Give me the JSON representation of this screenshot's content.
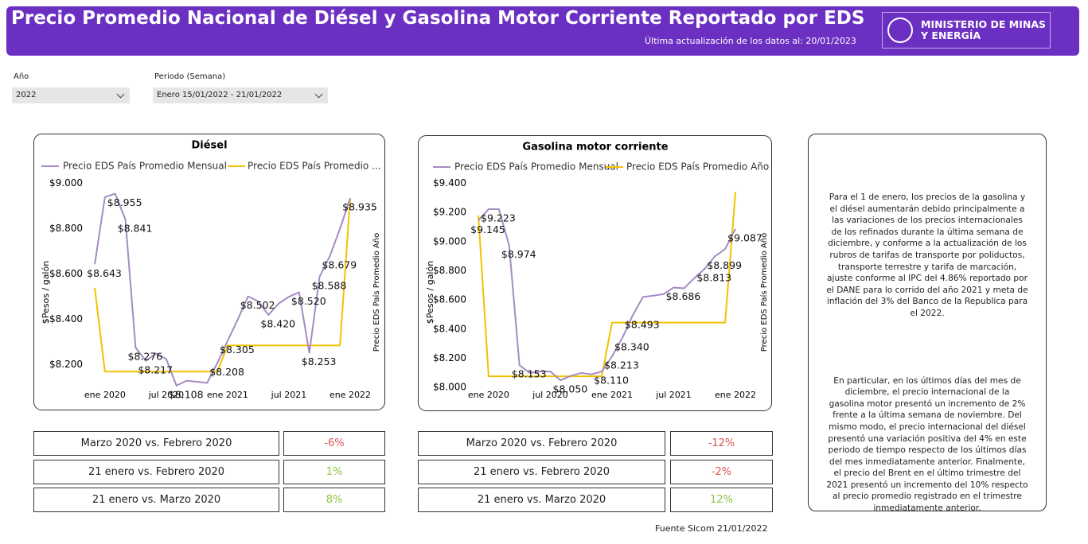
{
  "header": {
    "title": "Precio Promedio Nacional de Diésel y Gasolina Motor Corriente Reportado por EDS",
    "updated": "Última actualización de los datos al: 20/01/2023",
    "logo": [
      "MINISTERIO DE MINAS",
      "Y ENERGÍA"
    ]
  },
  "filters": [
    {
      "label": "Año",
      "value": "2022"
    },
    {
      "label": "Periodo (Semana)",
      "value": "Enero 15/01/2022 - 21/01/2022"
    }
  ],
  "chart_data": [
    {
      "type": "line",
      "title": "Diésel",
      "ylabel": "$Pesos / galón",
      "y2label": "Precio EDS País Promedio Año",
      "x": [
        "2019-12",
        "2020-01",
        "2020-02",
        "2020-03",
        "2020-04",
        "2020-05",
        "2020-06",
        "2020-07",
        "2020-08",
        "2020-09",
        "2020-10",
        "2020-11",
        "2020-12",
        "2021-01",
        "2021-02",
        "2021-03",
        "2021-04",
        "2021-05",
        "2021-06",
        "2021-07",
        "2021-08",
        "2021-09",
        "2021-10",
        "2021-11",
        "2021-12",
        "2022-01"
      ],
      "xticks": [
        {
          "value": "2020-01",
          "label": "ene 2020"
        },
        {
          "value": "2020-07",
          "label": "jul 2020"
        },
        {
          "value": "2021-01",
          "label": "ene 2021"
        },
        {
          "value": "2021-07",
          "label": "jul 2021"
        },
        {
          "value": "2022-01",
          "label": "ene 2022"
        }
      ],
      "ylim": [
        8090,
        9020
      ],
      "yticks": [
        {
          "value": 8200,
          "label": "$8.200"
        },
        {
          "value": 8400,
          "label": "$8.400"
        },
        {
          "value": 8600,
          "label": "$8.600"
        },
        {
          "value": 8800,
          "label": "$8.800"
        },
        {
          "value": 9000,
          "label": "$9.000"
        }
      ],
      "grid": false,
      "series": [
        {
          "name": "Precio EDS País Promedio Mensual",
          "color": "#a58bc4",
          "values": [
            8643,
            8940,
            8955,
            8841,
            8276,
            8217,
            8250,
            8225,
            8108,
            8130,
            8125,
            8120,
            8208,
            8305,
            8400,
            8502,
            8480,
            8420,
            8470,
            8500,
            8520,
            8253,
            8588,
            8679,
            8800,
            8935
          ],
          "value_labels": [
            "$8.643",
            null,
            "$8.955",
            "$8.841",
            "$8.276",
            "$8.217",
            null,
            null,
            "$8.108",
            null,
            null,
            null,
            "$8.208",
            "$8.305",
            null,
            "$8.502",
            null,
            "$8.420",
            null,
            null,
            "$8.520",
            "$8.253",
            "$8.588",
            "$8.679",
            null,
            "$8.935"
          ]
        },
        {
          "name": "Precio EDS País Promedio ...",
          "color": "#f2c200",
          "values": [
            8540,
            8170,
            8170,
            8170,
            8170,
            8170,
            8170,
            8170,
            8170,
            8170,
            8170,
            8170,
            8170,
            8285,
            8285,
            8285,
            8285,
            8285,
            8285,
            8285,
            8285,
            8285,
            8285,
            8285,
            8285,
            8935
          ]
        }
      ]
    },
    {
      "type": "line",
      "title": "Gasolina motor corriente",
      "ylabel": "$Pesos / galón",
      "y2label": "Precio EDS País Promedio Año",
      "x": [
        "2019-12",
        "2020-01",
        "2020-02",
        "2020-03",
        "2020-04",
        "2020-05",
        "2020-06",
        "2020-07",
        "2020-08",
        "2020-09",
        "2020-10",
        "2020-11",
        "2020-12",
        "2021-01",
        "2021-02",
        "2021-03",
        "2021-04",
        "2021-05",
        "2021-06",
        "2021-07",
        "2021-08",
        "2021-09",
        "2021-10",
        "2021-11",
        "2021-12",
        "2022-01"
      ],
      "xticks": [
        {
          "value": "2020-01",
          "label": "ene 2020"
        },
        {
          "value": "2020-07",
          "label": "jul 2020"
        },
        {
          "value": "2021-01",
          "label": "ene 2021"
        },
        {
          "value": "2021-07",
          "label": "jul 2021"
        },
        {
          "value": "2022-01",
          "label": "ene 2022"
        }
      ],
      "ylim": [
        7985,
        9430
      ],
      "yticks": [
        {
          "value": 8000,
          "label": "$8.000"
        },
        {
          "value": 8200,
          "label": "$8.200"
        },
        {
          "value": 8400,
          "label": "$8.400"
        },
        {
          "value": 8600,
          "label": "$8.600"
        },
        {
          "value": 8800,
          "label": "$8.800"
        },
        {
          "value": 9000,
          "label": "$9.000"
        },
        {
          "value": 9200,
          "label": "$9.200"
        },
        {
          "value": 9400,
          "label": "$9.400"
        }
      ],
      "grid": false,
      "series": [
        {
          "name": "Precio EDS País Promedio Mensual",
          "color": "#a58bc4",
          "values": [
            9145,
            9223,
            9223,
            8974,
            8153,
            8100,
            8110,
            8110,
            8050,
            8080,
            8100,
            8090,
            8110,
            8213,
            8340,
            8493,
            8620,
            8630,
            8640,
            8686,
            8680,
            8750,
            8813,
            8899,
            8950,
            9087
          ],
          "value_labels": [
            "$9.145",
            "$9.223",
            null,
            "$8.974",
            "$8.153",
            null,
            null,
            null,
            "$8.050",
            null,
            null,
            null,
            "$8.110",
            "$8.213",
            "$8.340",
            "$8.493",
            null,
            null,
            null,
            "$8.686",
            null,
            null,
            "$8.813",
            "$8.899",
            null,
            "$9.087"
          ]
        },
        {
          "name": "Precio EDS País Promedio Año",
          "color": "#f2c200",
          "values": [
            9180,
            8077,
            8077,
            8077,
            8077,
            8077,
            8077,
            8077,
            8077,
            8077,
            8077,
            8077,
            8077,
            8445,
            8445,
            8445,
            8445,
            8445,
            8445,
            8445,
            8445,
            8445,
            8445,
            8445,
            8445,
            9340
          ]
        }
      ]
    }
  ],
  "tables": [
    [
      {
        "label": "Marzo 2020 vs. Febrero 2020",
        "value": "-6%",
        "color": "#d9534f"
      },
      {
        "label": "21 enero vs. Febrero 2020",
        "value": "1%",
        "color": "#8dc63f"
      },
      {
        "label": "21 enero vs. Marzo 2020",
        "value": "8%",
        "color": "#8dc63f"
      }
    ],
    [
      {
        "label": "Marzo 2020 vs. Febrero 2020",
        "value": "-12%",
        "color": "#d9534f"
      },
      {
        "label": "21 enero vs. Febrero 2020",
        "value": "-2%",
        "color": "#d9534f"
      },
      {
        "label": "21 enero vs. Marzo 2020",
        "value": "12%",
        "color": "#8dc63f"
      }
    ]
  ],
  "notes": [
    "Para el 1 de enero, los precios de la gasolina y el diésel aumentarán debido principalmente a las variaciones de los precios internacionales de los refinados durante la última semana de diciembre, y conforme a la actualización de los rubros de tarifas de transporte por poliductos, transporte terrestre y tarifa de marcación, ajuste conforme al IPC del 4.86% reportado por el DANE para lo corrido del año 2021 y meta de inflación del 3% del Banco de la Republica para el 2022.",
    "En particular, en los últimos días del mes de diciembre, el precio internacional de la gasolina motor presentó un incremento de 2% frente a la última semana de noviembre. Del mismo modo, el precio internacional del diésel presentó una variación positiva del 4% en este periodo de tiempo respecto de los últimos días del mes inmediatamente anterior. Finalmente, el precio del Brent en el último trimestre del 2021 presentó un incremento del 10% respecto al precio promedio registrado en el trimestre inmediatamente anterior."
  ],
  "source": "Fuente Sicom 21/01/2022"
}
